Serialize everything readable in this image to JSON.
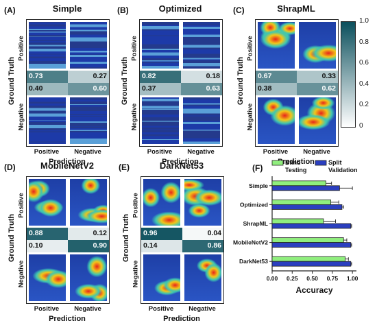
{
  "common": {
    "ylabel": "Ground Truth",
    "xlabel": "Prediction",
    "row_positive": "Positive",
    "row_negative": "Negative",
    "col_positive": "Positive",
    "col_negative": "Negative"
  },
  "panels": [
    {
      "letter": "(A)",
      "title": "Simple",
      "tp": "0.73",
      "fn": "0.27",
      "fp": "0.40",
      "tn": "0.60",
      "v": [
        0.73,
        0.27,
        0.4,
        0.6
      ]
    },
    {
      "letter": "(B)",
      "title": "Optimized",
      "tp": "0.82",
      "fn": "0.18",
      "fp": "0.37",
      "tn": "0.63",
      "v": [
        0.82,
        0.18,
        0.37,
        0.63
      ]
    },
    {
      "letter": "(C)",
      "title": "ShrapML",
      "tp": "0.67",
      "fn": "0.33",
      "fp": "0.38",
      "tn": "0.62",
      "v": [
        0.67,
        0.33,
        0.38,
        0.62
      ]
    },
    {
      "letter": "(D)",
      "title": "MobileNetV2",
      "tp": "0.88",
      "fn": "0.12",
      "fp": "0.10",
      "tn": "0.90",
      "v": [
        0.88,
        0.12,
        0.1,
        0.9
      ]
    },
    {
      "letter": "(E)",
      "title": "DarkNet53",
      "tp": "0.96",
      "fn": "0.04",
      "fp": "0.14",
      "tn": "0.86",
      "v": [
        0.96,
        0.04,
        0.14,
        0.86
      ]
    }
  ],
  "colorbar": {
    "ticks": [
      "1.0",
      "0.8",
      "0.6",
      "0.4",
      "0.2",
      "0"
    ],
    "low_color": "#ffffff",
    "high_color": "#0b4f5c"
  },
  "bar_panel": {
    "letter": "(F)",
    "legend": [
      "Blind Testing",
      "Split Validation"
    ],
    "xlabel": "Accuracy",
    "xticks": [
      "0.00",
      "0.25",
      "0.50",
      "0.75",
      "1.00"
    ],
    "categories": [
      "Simple",
      "Optimized",
      "ShrapML",
      "MobileNetV2",
      "DarkNet53"
    ]
  },
  "chart_data": {
    "type": "bar",
    "orientation": "horizontal",
    "categories": [
      "Simple",
      "Optimized",
      "ShrapML",
      "MobileNetV2",
      "DarkNet53"
    ],
    "series": [
      {
        "name": "Blind Testing",
        "color": "#90ee7e",
        "values": [
          0.67,
          0.73,
          0.64,
          0.89,
          0.91
        ],
        "errors": [
          0.07,
          0.1,
          0.15,
          0.04,
          0.04
        ]
      },
      {
        "name": "Split Validation",
        "color": "#2b3fbf",
        "values": [
          0.84,
          0.87,
          0.98,
          0.98,
          0.98
        ],
        "errors": [
          0.16,
          0.02,
          0.01,
          0.01,
          0.01
        ]
      }
    ],
    "xlabel": "Accuracy",
    "xlim": [
      0,
      1.05
    ],
    "legend_position": "top"
  }
}
